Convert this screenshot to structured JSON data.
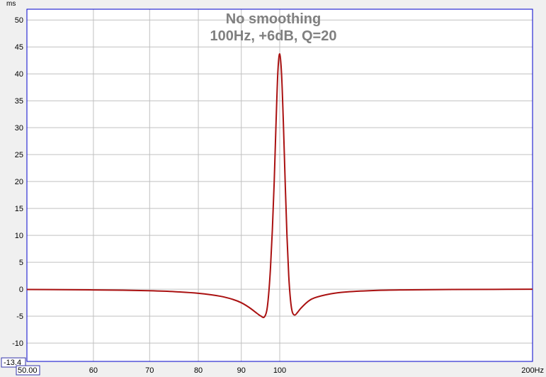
{
  "chart_data": {
    "type": "line",
    "title": "No smoothing",
    "subtitle": "100Hz, +6dB, Q=20",
    "ylabel": "ms",
    "x_unit": "Hz",
    "x_scale": "log",
    "xlim": [
      50,
      200
    ],
    "ylim": [
      -13.4,
      52
    ],
    "x_ticks": [
      60,
      70,
      80,
      90,
      100,
      200
    ],
    "x_tick_labels": [
      "60",
      "70",
      "80",
      "90",
      "100",
      "200Hz"
    ],
    "y_ticks": [
      -10,
      -5,
      0,
      5,
      10,
      15,
      20,
      25,
      30,
      35,
      40,
      45,
      50
    ],
    "y_tick_labels": [
      "-10",
      "-5",
      "0",
      "5",
      "10",
      "15",
      "20",
      "25",
      "30",
      "35",
      "40",
      "45",
      "50"
    ],
    "grid": true,
    "series": [
      {
        "color": "#aa1111",
        "x": [
          50,
          55,
          60,
          65,
          70,
          75,
          80,
          85,
          88,
          90,
          92,
          94,
          95,
          95.8,
          96.5,
          97,
          97.5,
          98,
          98.5,
          99,
          99.5,
          100,
          100.5,
          101,
          101.5,
          102,
          102.5,
          103,
          103.5,
          104.2,
          105,
          106,
          108,
          110,
          115,
          120,
          130,
          140,
          160,
          180,
          200
        ],
        "y": [
          -0.05,
          -0.08,
          -0.12,
          -0.18,
          -0.28,
          -0.45,
          -0.75,
          -1.3,
          -1.9,
          -2.5,
          -3.4,
          -4.5,
          -5.0,
          -5.2,
          -4.0,
          -1.0,
          4.0,
          11.0,
          20.0,
          31.0,
          40.5,
          43.7,
          40.0,
          31.0,
          20.0,
          10.0,
          2.5,
          -2.0,
          -4.2,
          -4.8,
          -4.3,
          -3.5,
          -2.3,
          -1.6,
          -0.85,
          -0.5,
          -0.22,
          -0.12,
          -0.05,
          -0.02,
          0.0
        ]
      }
    ]
  },
  "axis_readouts": {
    "y_min": "-13.4",
    "x_min": "50.00"
  },
  "colors": {
    "background": "#f0f0f0",
    "plot_background": "#ffffff",
    "grid": "#c0c0c0",
    "frame": "#0000cc",
    "readout_box": "#3333aa",
    "title": "#808080"
  }
}
